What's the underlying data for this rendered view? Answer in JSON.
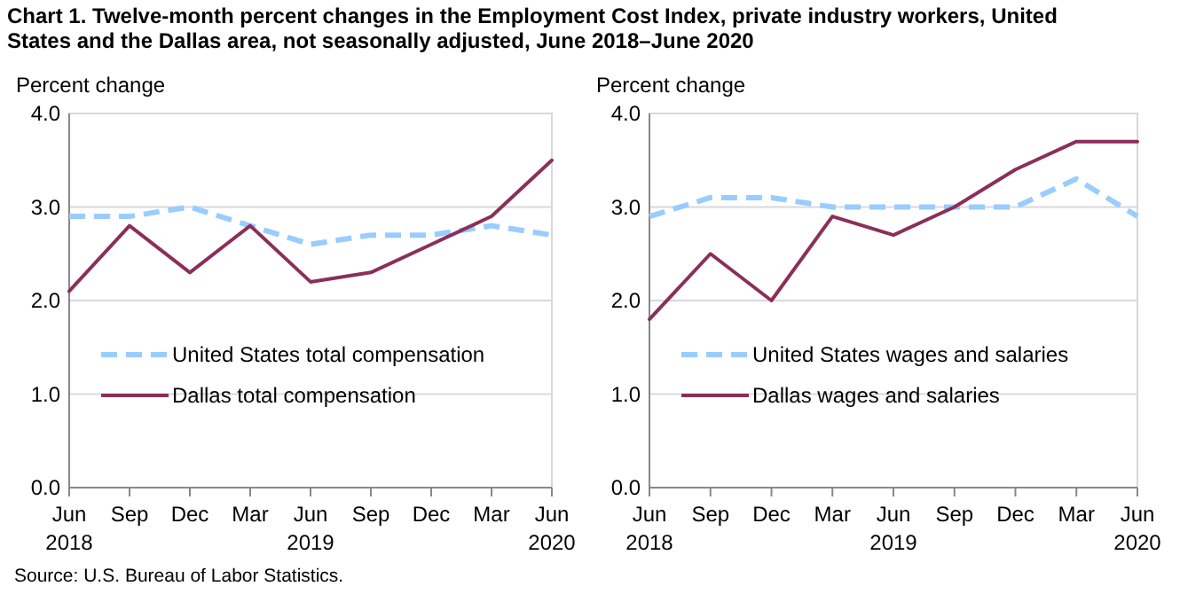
{
  "chart_data": [
    {
      "type": "line",
      "title": "Chart 1. Twelve-month percent changes in the Employment Cost Index, private industry workers, United States and the Dallas area, not seasonally adjusted, June 2018–June 2020",
      "ylabel": "Percent change",
      "categories": [
        "Jun\n2018",
        "Sep",
        "Dec",
        "Mar",
        "Jun\n2019",
        "Sep",
        "Dec",
        "Mar",
        "Jun\n2020"
      ],
      "series": [
        {
          "name": "United States total compensation",
          "color": "#99ccff",
          "line_style": "dashed",
          "values": [
            2.9,
            2.9,
            3.0,
            2.8,
            2.6,
            2.7,
            2.7,
            2.8,
            2.7
          ]
        },
        {
          "name": "Dallas total compensation",
          "color": "#8b2f5a",
          "line_style": "solid",
          "values": [
            2.1,
            2.8,
            2.3,
            2.8,
            2.2,
            2.3,
            2.6,
            2.9,
            3.5
          ]
        }
      ],
      "ylim": [
        0,
        4
      ],
      "yticks": [
        {
          "value": 0,
          "label": "0.0"
        },
        {
          "value": 1,
          "label": "1.0"
        },
        {
          "value": 2,
          "label": "2.0"
        },
        {
          "value": 3,
          "label": "3.0"
        },
        {
          "value": 4,
          "label": "4.0"
        }
      ],
      "grid": "y",
      "legend": "bottom left",
      "annotations": [
        "Source: U.S. Bureau of Labor Statistics."
      ]
    },
    {
      "type": "line",
      "ylabel": "Percent change",
      "categories": [
        "Jun\n2018",
        "Sep",
        "Dec",
        "Mar",
        "Jun\n2019",
        "Sep",
        "Dec",
        "Mar",
        "Jun\n2020"
      ],
      "series": [
        {
          "name": "United States wages and salaries",
          "color": "#99ccff",
          "line_style": "dashed",
          "values": [
            2.9,
            3.1,
            3.1,
            3.0,
            3.0,
            3.0,
            3.0,
            3.3,
            2.9
          ]
        },
        {
          "name": "Dallas wages and salaries",
          "color": "#8b2f5a",
          "line_style": "solid",
          "values": [
            1.8,
            2.5,
            2.0,
            2.9,
            2.7,
            3.0,
            3.4,
            3.7,
            3.7
          ]
        }
      ],
      "ylim": [
        0,
        4
      ],
      "yticks": [
        {
          "value": 0,
          "label": "0.0"
        },
        {
          "value": 1,
          "label": "1.0"
        },
        {
          "value": 2,
          "label": "2.0"
        },
        {
          "value": 3,
          "label": "3.0"
        },
        {
          "value": 4,
          "label": "4.0"
        }
      ],
      "grid": "y",
      "legend": "bottom left"
    }
  ]
}
